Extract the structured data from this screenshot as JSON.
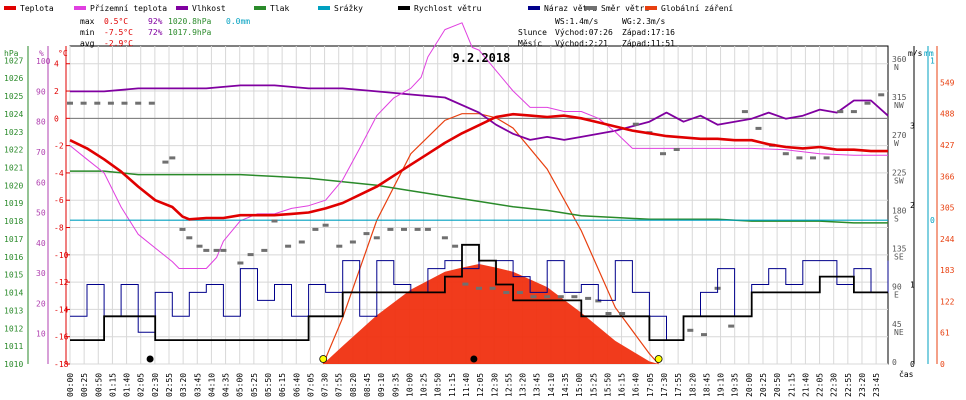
{
  "legend": [
    {
      "key": "teplota",
      "label": "Teplota",
      "color": "#e00000"
    },
    {
      "key": "prizemni",
      "label": "Přízemní teplota",
      "color": "#e040e0"
    },
    {
      "key": "vlhkost",
      "label": "Vlhkost",
      "color": "#8000a0"
    },
    {
      "key": "tlak",
      "label": "Tlak",
      "color": "#2a8a2a"
    },
    {
      "key": "srazky",
      "label": "Srážky",
      "color": "#00a0c0"
    },
    {
      "key": "rychlost",
      "label": "Rychlost větru",
      "color": "#000000"
    },
    {
      "key": "naraz",
      "label": "Náraz větru",
      "color": "#00008b"
    },
    {
      "key": "smer",
      "label": "Směr větru",
      "color": "#707070"
    },
    {
      "key": "zareni",
      "label": "Globální záření",
      "color": "#e84010"
    }
  ],
  "stats": {
    "max_label": "max",
    "max_temp": "0.5°C",
    "max_hum": "92%",
    "max_press": "1020.8hPa",
    "max_rain": "0.0mm",
    "min_label": "min",
    "min_temp": "-7.5°C",
    "min_hum": "72%",
    "min_press": "1017.9hPa",
    "avg_label": "avg",
    "avg_temp": "-2.9°C"
  },
  "wind_stats": {
    "ws": "WS:1.4m/s",
    "wg": "WG:2.3m/s",
    "slunce": "Slunce",
    "slunce_vychod": "Východ:07:26",
    "slunce_zapad": "Západ:17:16",
    "mesic": "Měsíc",
    "mesic_vychod": "Východ:2:21",
    "mesic_zapad": "Západ:11:51"
  },
  "chart_data": {
    "type": "line",
    "title": "9.2.2018",
    "x_unit_label": "čas",
    "x_tick_labels": [
      "00:00",
      "00:25",
      "00:50",
      "01:15",
      "01:40",
      "02:05",
      "02:30",
      "02:55",
      "03:20",
      "03:45",
      "04:10",
      "04:35",
      "05:00",
      "05:25",
      "05:50",
      "06:15",
      "06:40",
      "07:05",
      "07:30",
      "07:55",
      "08:20",
      "08:45",
      "09:10",
      "09:35",
      "10:00",
      "10:25",
      "10:50",
      "11:15",
      "11:40",
      "12:05",
      "12:30",
      "12:55",
      "13:20",
      "13:45",
      "14:10",
      "14:35",
      "15:00",
      "15:25",
      "15:50",
      "16:15",
      "16:40",
      "17:05",
      "17:30",
      "17:55",
      "18:20",
      "18:45",
      "19:10",
      "19:35",
      "20:00",
      "20:25",
      "20:50",
      "21:15",
      "21:40",
      "22:05",
      "22:30",
      "22:55",
      "23:20",
      "23:45"
    ],
    "axes": {
      "hpa": {
        "unit": "hPa",
        "ticks": [
          1010,
          1011,
          1012,
          1013,
          1014,
          1015,
          1016,
          1017,
          1018,
          1019,
          1020,
          1021,
          1022,
          1023,
          1024,
          1025,
          1026,
          1027
        ],
        "min": 1010,
        "max": 1027.8
      },
      "percent": {
        "unit": "%",
        "ticks": [
          10,
          20,
          30,
          40,
          50,
          60,
          70,
          80,
          90,
          100
        ],
        "min": 0,
        "max": 105
      },
      "celsius": {
        "unit": "°C",
        "ticks": [
          -18,
          -16,
          -14,
          -12,
          -10,
          -8,
          -6,
          -4,
          -2,
          0,
          2,
          4
        ],
        "min": -18,
        "max": 5.3
      },
      "direction": {
        "unit": "",
        "ticks": [
          {
            "v": 0,
            "t": "0"
          },
          {
            "v": 45,
            "t": "45 NE"
          },
          {
            "v": 90,
            "t": "90 E"
          },
          {
            "v": 135,
            "t": "135 SE"
          },
          {
            "v": 180,
            "t": "180 S"
          },
          {
            "v": 225,
            "t": "225 SW"
          },
          {
            "v": 270,
            "t": "270 W"
          },
          {
            "v": 315,
            "t": "315 NW"
          },
          {
            "v": 360,
            "t": "360 N"
          }
        ],
        "min": 0,
        "max": 378
      },
      "wind": {
        "unit": "m/s",
        "ticks": [
          0,
          1,
          2,
          3
        ],
        "min": 0,
        "max": 4.0
      },
      "rain": {
        "unit": "mm",
        "ticks": [
          0,
          1
        ],
        "min": -0.9,
        "max": 1.09
      },
      "radiation": {
        "unit": "",
        "ticks": [
          0,
          61,
          122,
          183,
          244,
          305,
          366,
          427,
          488,
          549
        ],
        "min": 0,
        "max": 620
      }
    },
    "grid": true,
    "series": [
      {
        "name": "Teplota",
        "axis": "celsius",
        "x_hours": [
          0,
          0.5,
          1,
          1.5,
          2,
          2.5,
          3,
          3.3,
          3.5,
          4,
          4.5,
          5,
          5.5,
          6,
          6.5,
          7,
          7.5,
          8,
          8.5,
          9,
          9.5,
          10,
          10.5,
          11,
          11.5,
          12,
          12.5,
          13,
          13.5,
          14,
          14.5,
          15,
          15.5,
          16,
          16.5,
          17,
          17.5,
          18,
          18.5,
          19,
          19.5,
          20,
          20.5,
          21,
          21.5,
          22,
          22.5,
          23,
          23.5,
          24
        ],
        "values": [
          -1.6,
          -2.2,
          -3.0,
          -3.9,
          -5.0,
          -6.0,
          -6.5,
          -7.2,
          -7.4,
          -7.3,
          -7.3,
          -7.1,
          -7.1,
          -7.1,
          -7.0,
          -6.9,
          -6.6,
          -6.2,
          -5.6,
          -5.0,
          -4.2,
          -3.4,
          -2.6,
          -1.8,
          -1.1,
          -0.5,
          0.1,
          0.3,
          0.2,
          0.1,
          0.2,
          0.0,
          -0.3,
          -0.6,
          -0.9,
          -1.1,
          -1.3,
          -1.4,
          -1.5,
          -1.5,
          -1.6,
          -1.6,
          -1.9,
          -2.1,
          -2.2,
          -2.1,
          -2.3,
          -2.3,
          -2.4,
          -2.4
        ]
      },
      {
        "name": "Přízemní teplota",
        "axis": "celsius",
        "x_hours": [
          0,
          0.5,
          1,
          1.5,
          2,
          2.5,
          3,
          3.2,
          3.5,
          4,
          4.3,
          4.5,
          5,
          5.5,
          6,
          6.5,
          7,
          7.5,
          8,
          8.5,
          9,
          9.5,
          10,
          10.3,
          10.5,
          11,
          11.5,
          11.8,
          12,
          12.5,
          13,
          13.5,
          14,
          14.5,
          15,
          15.5,
          16,
          16.5,
          17,
          17.5,
          18,
          19,
          20,
          21,
          22,
          23,
          24
        ],
        "values": [
          -2,
          -3,
          -4,
          -6.5,
          -8.5,
          -9.5,
          -10.5,
          -11,
          -11,
          -11,
          -10.2,
          -9,
          -7.5,
          -7,
          -7,
          -6.6,
          -6.4,
          -6.0,
          -4.5,
          -2.2,
          0.2,
          1.5,
          2.2,
          3.0,
          4.5,
          6.5,
          7.0,
          5.2,
          5.0,
          3.5,
          2.0,
          0.8,
          0.8,
          0.5,
          0.5,
          0.0,
          -1.0,
          -2.2,
          -2.2,
          -2.2,
          -2.2,
          -2.2,
          -2.2,
          -2.3,
          -2.6,
          -2.7,
          -2.7
        ]
      },
      {
        "name": "Vlhkost",
        "axis": "percent",
        "x_hours": [
          0,
          1,
          2,
          3,
          4,
          5,
          6,
          7,
          8,
          9,
          10,
          11,
          12,
          12.5,
          13,
          13.5,
          14,
          14.5,
          15,
          16,
          17,
          17.5,
          18,
          18.5,
          19,
          20,
          20.5,
          21,
          21.5,
          22,
          22.5,
          23,
          23.5,
          24
        ],
        "values": [
          90,
          90,
          91,
          91,
          91,
          92,
          92,
          91,
          91,
          90,
          89,
          88,
          83,
          79,
          76,
          74,
          75,
          74,
          75,
          77,
          80,
          83,
          80,
          82,
          79,
          81,
          83,
          81,
          82,
          84,
          83,
          87,
          87,
          82
        ]
      },
      {
        "name": "Tlak",
        "axis": "hpa",
        "x_hours": [
          0,
          1,
          2,
          3,
          4,
          5,
          6,
          7,
          8,
          9,
          10,
          11,
          12,
          13,
          14,
          15,
          16,
          17,
          18,
          19,
          20,
          21,
          22,
          23,
          24
        ],
        "values": [
          1020.8,
          1020.8,
          1020.6,
          1020.6,
          1020.6,
          1020.6,
          1020.5,
          1020.4,
          1020.2,
          1020.0,
          1019.7,
          1019.4,
          1019.1,
          1018.8,
          1018.6,
          1018.3,
          1018.2,
          1018.1,
          1018.1,
          1018.1,
          1018.0,
          1018.0,
          1018.0,
          1017.9,
          1017.9
        ]
      },
      {
        "name": "Srážky",
        "axis": "rain",
        "x_hours": [
          0,
          24
        ],
        "values": [
          0.0,
          0.0
        ]
      },
      {
        "name": "Rychlost větru",
        "axis": "wind",
        "x_hours": [
          0,
          1,
          2,
          2.5,
          3,
          4,
          5,
          6,
          7,
          8,
          9,
          10,
          11,
          11.5,
          12,
          12.5,
          13,
          14,
          15,
          16,
          17,
          18,
          19,
          20,
          21,
          22,
          23,
          24
        ],
        "values": [
          0.3,
          0.6,
          0.6,
          0.3,
          0.3,
          0.3,
          0.3,
          0.3,
          0.6,
          0.9,
          0.9,
          0.9,
          1.1,
          1.5,
          1.3,
          1.0,
          0.8,
          0.8,
          0.6,
          0.6,
          0.3,
          0.6,
          0.6,
          0.9,
          0.9,
          1.1,
          0.9,
          0.9
        ]
      },
      {
        "name": "Náraz větru",
        "axis": "wind",
        "x_hours": [
          0,
          0.5,
          1,
          1.5,
          2,
          2.5,
          3,
          3.5,
          4,
          4.5,
          5,
          5.5,
          6,
          6.5,
          7,
          7.5,
          8,
          8.5,
          9,
          9.5,
          10,
          10.5,
          11,
          11.5,
          12,
          12.5,
          13,
          13.5,
          14,
          14.5,
          15,
          15.5,
          16,
          16.5,
          17,
          17.5,
          18,
          18.5,
          19,
          19.5,
          20,
          20.5,
          21,
          21.5,
          22,
          22.5,
          23,
          23.5,
          24
        ],
        "values": [
          0.6,
          1.0,
          0.6,
          1.0,
          0.4,
          0.9,
          0.6,
          0.9,
          1.0,
          0.6,
          1.2,
          0.8,
          1.0,
          0.6,
          1.0,
          0.9,
          1.3,
          0.6,
          1.3,
          1.0,
          0.9,
          1.2,
          1.3,
          1.2,
          1.3,
          1.3,
          1.1,
          0.9,
          1.3,
          0.9,
          1.0,
          0.8,
          1.3,
          0.9,
          0.6,
          0.3,
          0.6,
          0.9,
          1.2,
          0.6,
          1.0,
          1.2,
          1.0,
          1.3,
          1.3,
          1.0,
          1.2,
          0.9,
          1.3
        ]
      },
      {
        "name": "Směr větru",
        "axis": "direction",
        "x_hours": [
          0,
          0.4,
          0.8,
          1.2,
          1.6,
          2.0,
          2.4,
          2.8,
          3.0,
          3.3,
          3.5,
          3.8,
          4.0,
          4.3,
          4.5,
          5.0,
          5.3,
          5.7,
          6.0,
          6.4,
          6.8,
          7.2,
          7.5,
          7.9,
          8.3,
          8.7,
          9.0,
          9.4,
          9.8,
          10.2,
          10.5,
          11.0,
          11.3,
          11.6,
          12.0,
          12.4,
          12.8,
          13.2,
          13.6,
          14.0,
          14.4,
          14.8,
          15.2,
          15.5,
          15.8,
          16.2,
          16.6,
          17.0,
          17.4,
          17.8,
          18.2,
          18.6,
          19.0,
          19.4,
          19.8,
          20.2,
          20.6,
          21.0,
          21.4,
          21.8,
          22.2,
          22.6,
          23.0,
          23.4,
          23.8
        ],
        "values": [
          310,
          310,
          310,
          310,
          310,
          310,
          310,
          240,
          245,
          160,
          150,
          140,
          135,
          135,
          135,
          120,
          130,
          135,
          170,
          140,
          145,
          160,
          165,
          140,
          145,
          155,
          150,
          160,
          160,
          160,
          160,
          150,
          140,
          95,
          90,
          90,
          85,
          85,
          80,
          80,
          80,
          80,
          78,
          75,
          60,
          60,
          285,
          275,
          250,
          255,
          40,
          35,
          90,
          45,
          300,
          280,
          260,
          250,
          245,
          245,
          245,
          300,
          300,
          310,
          320
        ]
      },
      {
        "name": "Globální záření",
        "axis": "radiation",
        "x_hours": [
          7.43,
          8,
          9,
          10,
          11,
          11.5,
          12,
          12.5,
          13,
          14,
          15,
          16,
          17,
          17.27
        ],
        "values": [
          0,
          35,
          95,
          145,
          180,
          188,
          195,
          188,
          180,
          150,
          100,
          45,
          5,
          0
        ]
      },
      {
        "name": "Globální záření (teoretické)",
        "axis": "radiation",
        "x_hours": [
          7.43,
          8,
          9,
          10,
          11,
          11.5,
          12,
          12.5,
          13,
          14,
          15,
          16,
          17,
          17.27
        ],
        "values": [
          0,
          90,
          280,
          410,
          475,
          488,
          488,
          480,
          460,
          380,
          260,
          110,
          20,
          0
        ]
      }
    ]
  }
}
